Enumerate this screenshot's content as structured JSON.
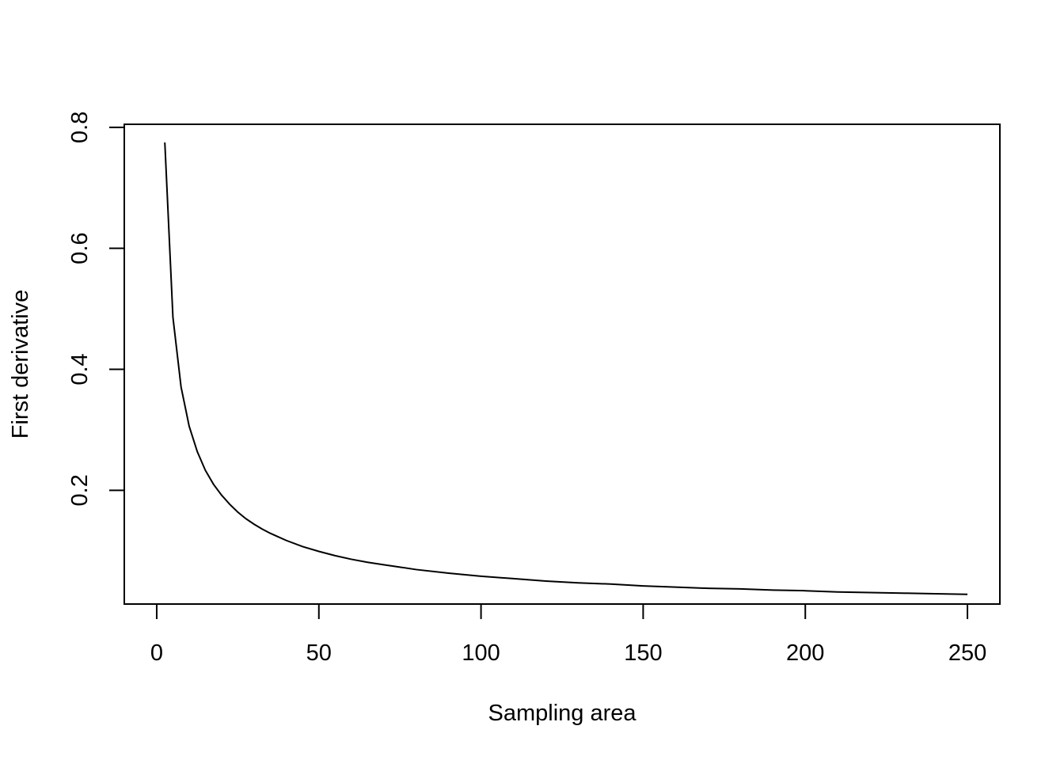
{
  "chart_data": {
    "type": "line",
    "title": "",
    "xlabel": "Sampling area",
    "ylabel": "First derivative",
    "xlim": [
      -10,
      260
    ],
    "ylim": [
      0.012,
      0.805
    ],
    "x_ticks": [
      0,
      50,
      100,
      150,
      200,
      250
    ],
    "x_tick_labels": [
      "0",
      "50",
      "100",
      "150",
      "200",
      "250"
    ],
    "y_ticks": [
      0.2,
      0.4,
      0.6,
      0.8
    ],
    "y_tick_labels": [
      "0.2",
      "0.4",
      "0.6",
      "0.8"
    ],
    "grid": false,
    "legend": "none",
    "line_color": "#000000",
    "series": [
      {
        "x": [
          2.5,
          5,
          7.5,
          10,
          12.5,
          15,
          17.5,
          20,
          22.5,
          25,
          27.5,
          30,
          32.5,
          35,
          37.5,
          40,
          45,
          50,
          55,
          60,
          65,
          70,
          75,
          80,
          90,
          100,
          110,
          120,
          130,
          140,
          150,
          160,
          170,
          180,
          190,
          200,
          210,
          220,
          230,
          240,
          250
        ],
        "y": [
          0.775,
          0.486,
          0.371,
          0.306,
          0.264,
          0.233,
          0.21,
          0.192,
          0.177,
          0.164,
          0.153,
          0.144,
          0.136,
          0.129,
          0.123,
          0.117,
          0.107,
          0.099,
          0.092,
          0.086,
          0.081,
          0.077,
          0.073,
          0.069,
          0.063,
          0.058,
          0.054,
          0.05,
          0.047,
          0.045,
          0.042,
          0.04,
          0.038,
          0.037,
          0.035,
          0.034,
          0.032,
          0.031,
          0.03,
          0.029,
          0.028
        ]
      }
    ]
  }
}
